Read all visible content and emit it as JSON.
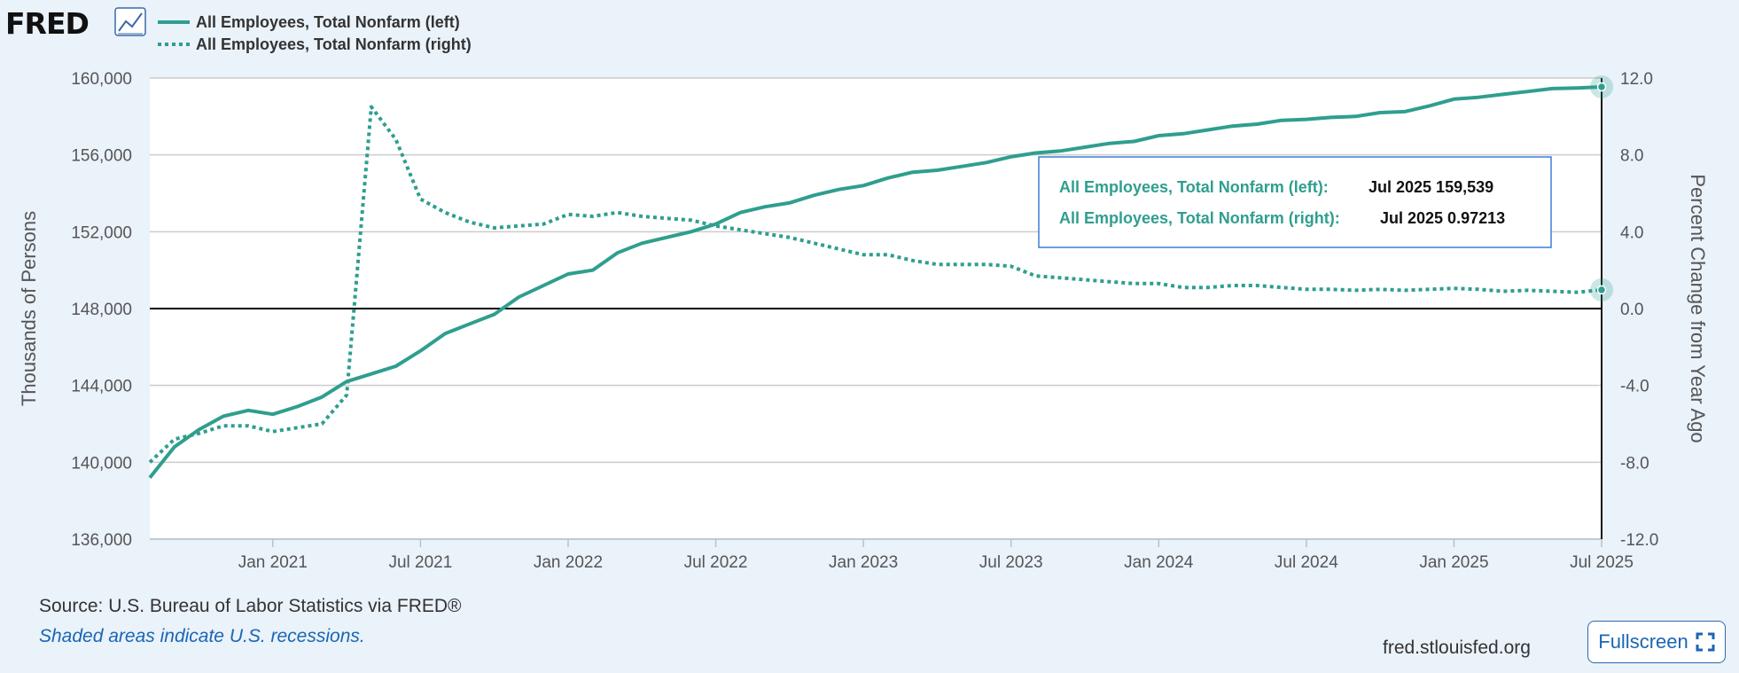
{
  "logo": {
    "text": "FRED"
  },
  "legend": [
    {
      "label": "All Employees, Total Nonfarm (left)",
      "style": "solid"
    },
    {
      "label": "All Employees, Total Nonfarm (right)",
      "style": "dotted"
    }
  ],
  "colors": {
    "series": "#2f9e8f",
    "zero_line": "#000000",
    "grid": "#cccccc",
    "background": "#eaf2fa",
    "plot_bg": "#ffffff",
    "link": "#1a66b3"
  },
  "tooltip": {
    "rows": [
      {
        "label": "All Employees, Total Nonfarm (left):",
        "value": "Jul 2025 159,539"
      },
      {
        "label": "All Employees, Total Nonfarm (right):",
        "value": "Jul 2025 0.97213"
      }
    ]
  },
  "footer": {
    "source": "Source: U.S. Bureau of Labor Statistics via FRED®",
    "recessions": "Shaded areas indicate U.S. recessions.",
    "site": "fred.stlouisfed.org",
    "fullscreen_label": "Fullscreen"
  },
  "chart_data": {
    "type": "line",
    "title": "",
    "x_range": [
      "2020-08",
      "2025-07"
    ],
    "x_tick_labels": [
      "Jan 2021",
      "Jul 2021",
      "Jan 2022",
      "Jul 2022",
      "Jan 2023",
      "Jul 2023",
      "Jan 2024",
      "Jul 2024",
      "Jan 2025",
      "Jul 2025"
    ],
    "x_tick_offsets": [
      5,
      11,
      17,
      23,
      29,
      35,
      41,
      47,
      53,
      59
    ],
    "left_axis": {
      "title": "Thousands of Persons",
      "min": 136000,
      "max": 160000,
      "ticks": [
        160000,
        156000,
        152000,
        148000,
        144000,
        140000,
        136000
      ],
      "tick_labels": [
        "160,000",
        "156,000",
        "152,000",
        "148,000",
        "144,000",
        "140,000",
        "136,000"
      ]
    },
    "right_axis": {
      "title": "Percent Change from Year Ago",
      "min": -12,
      "max": 12,
      "zero": 0,
      "ticks": [
        12,
        8,
        4,
        0,
        -4,
        -8,
        -12
      ],
      "tick_labels": [
        "12.0",
        "8.0",
        "4.0",
        "0.0",
        "-4.0",
        "-8.0",
        "-12.0"
      ]
    },
    "series": [
      {
        "name": "All Employees, Total Nonfarm (left)",
        "axis": "left",
        "style": "solid",
        "start": "2020-08",
        "values": [
          139200,
          140800,
          141700,
          142400,
          142700,
          142500,
          142900,
          143400,
          144200,
          144600,
          145000,
          145800,
          146700,
          147200,
          147700,
          148600,
          149200,
          149800,
          150000,
          150900,
          151400,
          151700,
          152000,
          152400,
          153000,
          153300,
          153500,
          153900,
          154200,
          154400,
          154800,
          155100,
          155200,
          155400,
          155600,
          155900,
          156100,
          156200,
          156400,
          156600,
          156700,
          157000,
          157100,
          157300,
          157500,
          157600,
          157800,
          157850,
          157950,
          158000,
          158200,
          158250,
          158550,
          158900,
          159000,
          159150,
          159300,
          159450,
          159480,
          159539
        ]
      },
      {
        "name": "All Employees, Total Nonfarm (right)",
        "axis": "right",
        "style": "dotted",
        "start": "2020-08",
        "values": [
          -8.0,
          -6.8,
          -6.5,
          -6.1,
          -6.1,
          -6.4,
          -6.2,
          -6.0,
          -4.5,
          10.5,
          8.8,
          5.7,
          5.0,
          4.5,
          4.2,
          4.3,
          4.4,
          4.9,
          4.8,
          5.0,
          4.8,
          4.7,
          4.6,
          4.3,
          4.1,
          3.9,
          3.7,
          3.4,
          3.1,
          2.8,
          2.8,
          2.5,
          2.3,
          2.3,
          2.3,
          2.2,
          1.7,
          1.6,
          1.5,
          1.4,
          1.3,
          1.3,
          1.1,
          1.1,
          1.2,
          1.2,
          1.1,
          1.0,
          1.0,
          0.95,
          1.0,
          0.95,
          1.0,
          1.05,
          1.0,
          0.9,
          0.95,
          0.9,
          0.85,
          0.97213
        ]
      }
    ]
  }
}
